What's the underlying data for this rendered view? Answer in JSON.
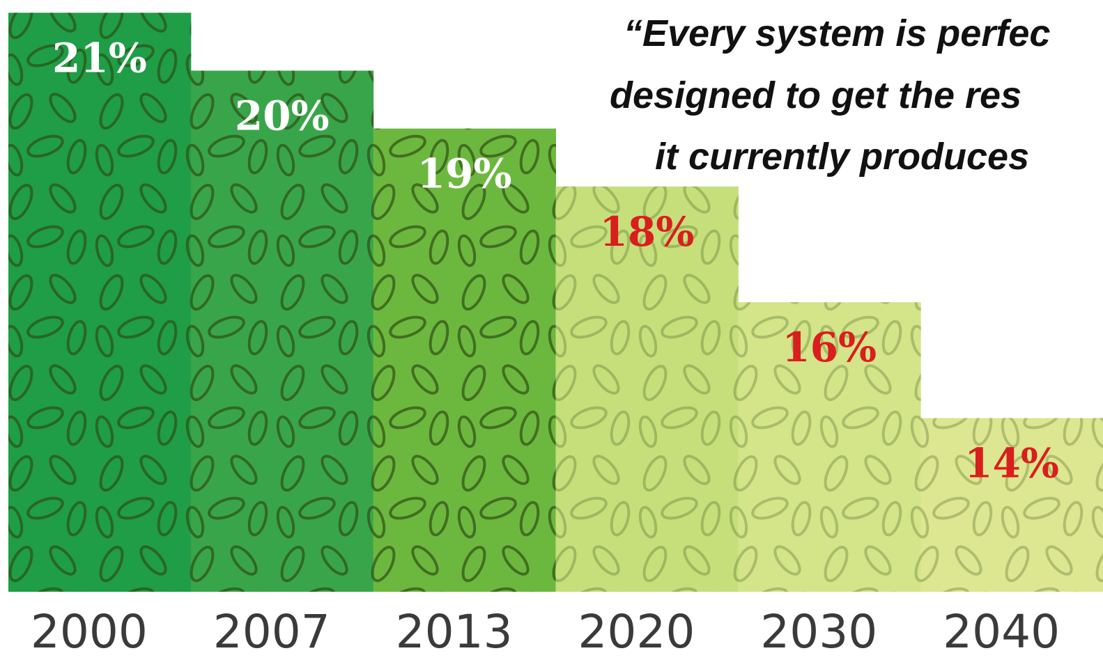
{
  "chart_data": {
    "type": "bar",
    "annotations": [
      "“Every system is perfec",
      "designed to get the res",
      "it currently produces"
    ],
    "categories": [
      "2000",
      "2007",
      "2013",
      "2020",
      "2030",
      "2040"
    ],
    "values": [
      21,
      20,
      19,
      18,
      16,
      14
    ],
    "value_labels": [
      "21%",
      "20%",
      "19%",
      "18%",
      "16%",
      "14%"
    ],
    "colors": [
      "#1f9d47",
      "#39a54a",
      "#6cb83f",
      "#c6df7b",
      "#d3e489",
      "#dde690"
    ],
    "label_colors": [
      "#ffffff",
      "#ffffff",
      "#ffffff",
      "#d91e1e",
      "#d91e1e",
      "#d91e1e"
    ],
    "ylim": [
      11,
      21.1
    ]
  }
}
